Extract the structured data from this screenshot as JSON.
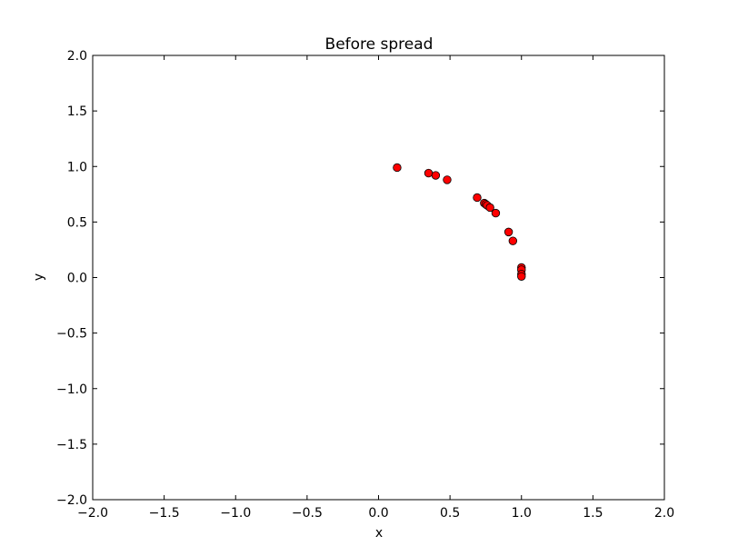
{
  "chart_data": {
    "type": "scatter",
    "title": "Before spread",
    "xlabel": "x",
    "ylabel": "y",
    "xlim": [
      -2.0,
      2.0
    ],
    "ylim": [
      -2.0,
      2.0
    ],
    "xticks": [
      -2.0,
      -1.5,
      -1.0,
      -0.5,
      0.0,
      0.5,
      1.0,
      1.5,
      2.0
    ],
    "yticks": [
      -2.0,
      -1.5,
      -1.0,
      -0.5,
      0.0,
      0.5,
      1.0,
      1.5,
      2.0
    ],
    "xtick_labels": [
      "−2.0",
      "−1.5",
      "−1.0",
      "−0.5",
      "0.0",
      "0.5",
      "1.0",
      "1.5",
      "2.0"
    ],
    "ytick_labels": [
      "−2.0",
      "−1.5",
      "−1.0",
      "−0.5",
      "0.0",
      "0.5",
      "1.0",
      "1.5",
      "2.0"
    ],
    "grid": false,
    "marker_color": "#ff0000",
    "marker_edge_color": "#000000",
    "points": [
      {
        "x": 0.13,
        "y": 0.99
      },
      {
        "x": 0.35,
        "y": 0.94
      },
      {
        "x": 0.4,
        "y": 0.92
      },
      {
        "x": 0.48,
        "y": 0.88
      },
      {
        "x": 0.69,
        "y": 0.72
      },
      {
        "x": 0.74,
        "y": 0.67
      },
      {
        "x": 0.75,
        "y": 0.66
      },
      {
        "x": 0.76,
        "y": 0.65
      },
      {
        "x": 0.78,
        "y": 0.63
      },
      {
        "x": 0.82,
        "y": 0.58
      },
      {
        "x": 0.91,
        "y": 0.41
      },
      {
        "x": 0.94,
        "y": 0.33
      },
      {
        "x": 1.0,
        "y": 0.09
      },
      {
        "x": 1.0,
        "y": 0.07
      },
      {
        "x": 1.0,
        "y": 0.03
      },
      {
        "x": 1.0,
        "y": 0.01
      }
    ]
  }
}
